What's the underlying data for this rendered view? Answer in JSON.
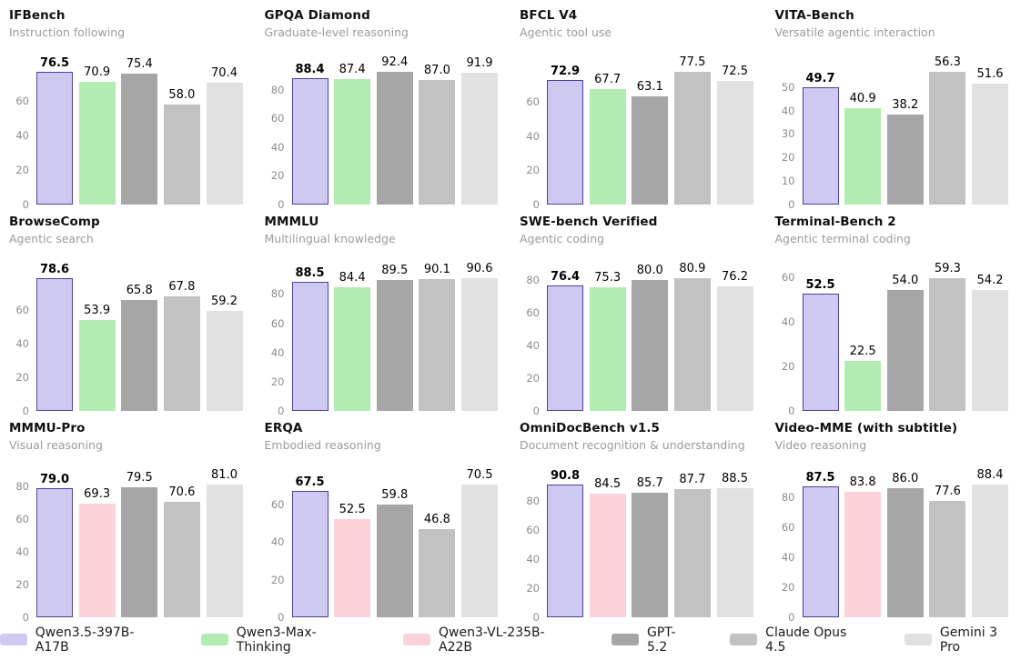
{
  "colors": {
    "purple": {
      "fill": "#cec9f1",
      "edge": "#4b4199"
    },
    "green": {
      "fill": "#b2ecb2"
    },
    "pink": {
      "fill": "#fbd2da"
    },
    "darkgray": {
      "fill": "#a6a6a6"
    },
    "midgray": {
      "fill": "#c2c2c2"
    },
    "lightgray": {
      "fill": "#e1e1e1"
    }
  },
  "legend": {
    "items": [
      {
        "label": "Qwen3.5-397B-A17B",
        "color": "purple"
      },
      {
        "label": "Qwen3-Max-Thinking",
        "color": "green"
      },
      {
        "label": "Qwen3-VL-235B-A22B",
        "color": "pink"
      },
      {
        "label": "GPT-5.2",
        "color": "darkgray"
      },
      {
        "label": "Claude Opus 4.5",
        "color": "midgray"
      },
      {
        "label": "Gemini 3 Pro",
        "color": "lightgray"
      }
    ]
  },
  "chart_data": [
    {
      "type": "bar",
      "title": "IFBench",
      "subtitle": "Instruction following",
      "yticks": [
        0,
        20,
        40,
        60
      ],
      "grid": false,
      "series": [
        {
          "name": "Qwen3.5-397B-A17B",
          "value": 76.5,
          "label": "76.5",
          "color": "purple"
        },
        {
          "name": "Qwen3-Max-Thinking",
          "value": 70.9,
          "label": "70.9",
          "color": "green"
        },
        {
          "name": "GPT-5.2",
          "value": 75.4,
          "label": "75.4",
          "color": "darkgray"
        },
        {
          "name": "Claude Opus 4.5",
          "value": 58.0,
          "label": "58.0",
          "color": "midgray"
        },
        {
          "name": "Gemini 3 Pro",
          "value": 70.4,
          "label": "70.4",
          "color": "lightgray"
        }
      ]
    },
    {
      "type": "bar",
      "title": "GPQA Diamond",
      "subtitle": "Graduate-level reasoning",
      "yticks": [
        0,
        20,
        40,
        60,
        80
      ],
      "grid": false,
      "series": [
        {
          "name": "Qwen3.5-397B-A17B",
          "value": 88.4,
          "label": "88.4",
          "color": "purple"
        },
        {
          "name": "Qwen3-Max-Thinking",
          "value": 87.4,
          "label": "87.4",
          "color": "green"
        },
        {
          "name": "GPT-5.2",
          "value": 92.4,
          "label": "92.4",
          "color": "darkgray"
        },
        {
          "name": "Claude Opus 4.5",
          "value": 87.0,
          "label": "87.0",
          "color": "midgray"
        },
        {
          "name": "Gemini 3 Pro",
          "value": 91.9,
          "label": "91.9",
          "color": "lightgray"
        }
      ]
    },
    {
      "type": "bar",
      "title": "BFCL V4",
      "subtitle": "Agentic tool use",
      "yticks": [
        0,
        20,
        40,
        60
      ],
      "grid": false,
      "series": [
        {
          "name": "Qwen3.5-397B-A17B",
          "value": 72.9,
          "label": "72.9",
          "color": "purple"
        },
        {
          "name": "Qwen3-Max-Thinking",
          "value": 67.7,
          "label": "67.7",
          "color": "green"
        },
        {
          "name": "GPT-5.2",
          "value": 63.1,
          "label": "63.1",
          "color": "darkgray"
        },
        {
          "name": "Claude Opus 4.5",
          "value": 77.5,
          "label": "77.5",
          "color": "midgray"
        },
        {
          "name": "Gemini 3 Pro",
          "value": 72.5,
          "label": "72.5",
          "color": "lightgray"
        }
      ]
    },
    {
      "type": "bar",
      "title": "VITA-Bench",
      "subtitle": "Versatile agentic interaction",
      "yticks": [
        0,
        10,
        20,
        30,
        40,
        50
      ],
      "grid": false,
      "series": [
        {
          "name": "Qwen3.5-397B-A17B",
          "value": 49.7,
          "label": "49.7",
          "color": "purple"
        },
        {
          "name": "Qwen3-Max-Thinking",
          "value": 40.9,
          "label": "40.9",
          "color": "green"
        },
        {
          "name": "GPT-5.2",
          "value": 38.2,
          "label": "38.2",
          "color": "darkgray"
        },
        {
          "name": "Claude Opus 4.5",
          "value": 56.3,
          "label": "56.3",
          "color": "midgray"
        },
        {
          "name": "Gemini 3 Pro",
          "value": 51.6,
          "label": "51.6",
          "color": "lightgray"
        }
      ]
    },
    {
      "type": "bar",
      "title": "BrowseComp",
      "subtitle": "Agentic search",
      "yticks": [
        0,
        20,
        40,
        60
      ],
      "grid": false,
      "series": [
        {
          "name": "Qwen3.5-397B-A17B",
          "value": 78.6,
          "label": "78.6",
          "color": "purple"
        },
        {
          "name": "Qwen3-Max-Thinking",
          "value": 53.9,
          "label": "53.9",
          "color": "green"
        },
        {
          "name": "GPT-5.2",
          "value": 65.8,
          "label": "65.8",
          "color": "darkgray"
        },
        {
          "name": "Claude Opus 4.5",
          "value": 67.8,
          "label": "67.8",
          "color": "midgray"
        },
        {
          "name": "Gemini 3 Pro",
          "value": 59.2,
          "label": "59.2",
          "color": "lightgray"
        }
      ]
    },
    {
      "type": "bar",
      "title": "MMMLU",
      "subtitle": "Multilingual knowledge",
      "yticks": [
        0,
        20,
        40,
        60,
        80
      ],
      "grid": false,
      "series": [
        {
          "name": "Qwen3.5-397B-A17B",
          "value": 88.5,
          "label": "88.5",
          "color": "purple"
        },
        {
          "name": "Qwen3-Max-Thinking",
          "value": 84.4,
          "label": "84.4",
          "color": "green"
        },
        {
          "name": "GPT-5.2",
          "value": 89.5,
          "label": "89.5",
          "color": "darkgray"
        },
        {
          "name": "Claude Opus 4.5",
          "value": 90.1,
          "label": "90.1",
          "color": "midgray"
        },
        {
          "name": "Gemini 3 Pro",
          "value": 90.6,
          "label": "90.6",
          "color": "lightgray"
        }
      ]
    },
    {
      "type": "bar",
      "title": "SWE-bench Verified",
      "subtitle": "Agentic coding",
      "yticks": [
        0,
        20,
        40,
        60,
        80
      ],
      "grid": false,
      "series": [
        {
          "name": "Qwen3.5-397B-A17B",
          "value": 76.4,
          "label": "76.4",
          "color": "purple"
        },
        {
          "name": "Qwen3-Max-Thinking",
          "value": 75.3,
          "label": "75.3",
          "color": "green"
        },
        {
          "name": "GPT-5.2",
          "value": 80.0,
          "label": "80.0",
          "color": "darkgray"
        },
        {
          "name": "Claude Opus 4.5",
          "value": 80.9,
          "label": "80.9",
          "color": "midgray"
        },
        {
          "name": "Gemini 3 Pro",
          "value": 76.2,
          "label": "76.2",
          "color": "lightgray"
        }
      ]
    },
    {
      "type": "bar",
      "title": "Terminal-Bench 2",
      "subtitle": "Agentic terminal coding",
      "yticks": [
        0,
        20,
        40,
        60
      ],
      "grid": false,
      "series": [
        {
          "name": "Qwen3.5-397B-A17B",
          "value": 52.5,
          "label": "52.5",
          "color": "purple"
        },
        {
          "name": "Qwen3-Max-Thinking",
          "value": 22.5,
          "label": "22.5",
          "color": "green"
        },
        {
          "name": "GPT-5.2",
          "value": 54.0,
          "label": "54.0",
          "color": "darkgray"
        },
        {
          "name": "Claude Opus 4.5",
          "value": 59.3,
          "label": "59.3",
          "color": "midgray"
        },
        {
          "name": "Gemini 3 Pro",
          "value": 54.2,
          "label": "54.2",
          "color": "lightgray"
        }
      ]
    },
    {
      "type": "bar",
      "title": "MMMU-Pro",
      "subtitle": "Visual reasoning",
      "yticks": [
        0,
        20,
        40,
        60,
        80
      ],
      "grid": false,
      "series": [
        {
          "name": "Qwen3.5-397B-A17B",
          "value": 79.0,
          "label": "79.0",
          "color": "purple"
        },
        {
          "name": "Qwen3-VL-235B-A22B",
          "value": 69.3,
          "label": "69.3",
          "color": "pink"
        },
        {
          "name": "GPT-5.2",
          "value": 79.5,
          "label": "79.5",
          "color": "darkgray"
        },
        {
          "name": "Claude Opus 4.5",
          "value": 70.6,
          "label": "70.6",
          "color": "midgray"
        },
        {
          "name": "Gemini 3 Pro",
          "value": 81.0,
          "label": "81.0",
          "color": "lightgray"
        }
      ]
    },
    {
      "type": "bar",
      "title": "ERQA",
      "subtitle": "Embodied reasoning",
      "yticks": [
        0,
        20,
        40,
        60
      ],
      "grid": false,
      "series": [
        {
          "name": "Qwen3.5-397B-A17B",
          "value": 67.5,
          "label": "67.5",
          "color": "purple"
        },
        {
          "name": "Qwen3-VL-235B-A22B",
          "value": 52.5,
          "label": "52.5",
          "color": "pink"
        },
        {
          "name": "GPT-5.2",
          "value": 59.8,
          "label": "59.8",
          "color": "darkgray"
        },
        {
          "name": "Claude Opus 4.5",
          "value": 46.8,
          "label": "46.8",
          "color": "midgray"
        },
        {
          "name": "Gemini 3 Pro",
          "value": 70.5,
          "label": "70.5",
          "color": "lightgray"
        }
      ]
    },
    {
      "type": "bar",
      "title": "OmniDocBench v1.5",
      "subtitle": "Document recognition & understanding",
      "yticks": [
        0,
        20,
        40,
        60,
        80
      ],
      "grid": false,
      "series": [
        {
          "name": "Qwen3.5-397B-A17B",
          "value": 90.8,
          "label": "90.8",
          "color": "purple"
        },
        {
          "name": "Qwen3-VL-235B-A22B",
          "value": 84.5,
          "label": "84.5",
          "color": "pink"
        },
        {
          "name": "GPT-5.2",
          "value": 85.7,
          "label": "85.7",
          "color": "darkgray"
        },
        {
          "name": "Claude Opus 4.5",
          "value": 87.7,
          "label": "87.7",
          "color": "midgray"
        },
        {
          "name": "Gemini 3 Pro",
          "value": 88.5,
          "label": "88.5",
          "color": "lightgray"
        }
      ]
    },
    {
      "type": "bar",
      "title": "Video-MME (with subtitle)",
      "subtitle": "Video reasoning",
      "yticks": [
        0,
        20,
        40,
        60,
        80
      ],
      "grid": false,
      "series": [
        {
          "name": "Qwen3.5-397B-A17B",
          "value": 87.5,
          "label": "87.5",
          "color": "purple"
        },
        {
          "name": "Qwen3-VL-235B-A22B",
          "value": 83.8,
          "label": "83.8",
          "color": "pink"
        },
        {
          "name": "GPT-5.2",
          "value": 86.0,
          "label": "86.0",
          "color": "darkgray"
        },
        {
          "name": "Claude Opus 4.5",
          "value": 77.6,
          "label": "77.6",
          "color": "midgray"
        },
        {
          "name": "Gemini 3 Pro",
          "value": 88.4,
          "label": "88.4",
          "color": "lightgray"
        }
      ]
    }
  ]
}
